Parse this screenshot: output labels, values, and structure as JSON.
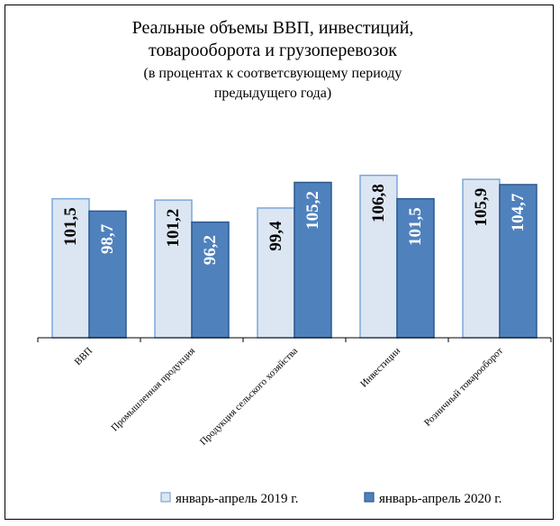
{
  "chart_data": {
    "type": "bar",
    "title_lines": [
      "Реальные объемы ВВП, инвестиций,",
      "товарооборота и грузоперевозок"
    ],
    "subtitle_lines": [
      "(в процентах к соответсвующему периоду",
      "предыдущего года)"
    ],
    "categories": [
      "ВВП",
      "Промышленная продукция",
      "Продукция сельского хозяйства",
      "Инвестиции",
      "Розничный товарооборот"
    ],
    "series": [
      {
        "name": "январь-апрель 2019 г.",
        "values": [
          101.5,
          101.2,
          99.4,
          106.8,
          105.9
        ],
        "labels": [
          "101,5",
          "101,2",
          "99,4",
          "106,8",
          "105,9"
        ],
        "color": "#dce6f2",
        "border": "#7ba7d9",
        "label_color": "#000000"
      },
      {
        "name": "январь-апрель 2020 г.",
        "values": [
          98.7,
          96.2,
          105.2,
          101.5,
          104.7
        ],
        "labels": [
          "98,7",
          "96,2",
          "105,2",
          "101,5",
          "104,7"
        ],
        "color": "#4f81bd",
        "border": "#2c5a8f",
        "label_color": "#ffffff"
      }
    ],
    "ylim": [
      70,
      110
    ],
    "grid": false,
    "legend_position": "bottom-right"
  }
}
